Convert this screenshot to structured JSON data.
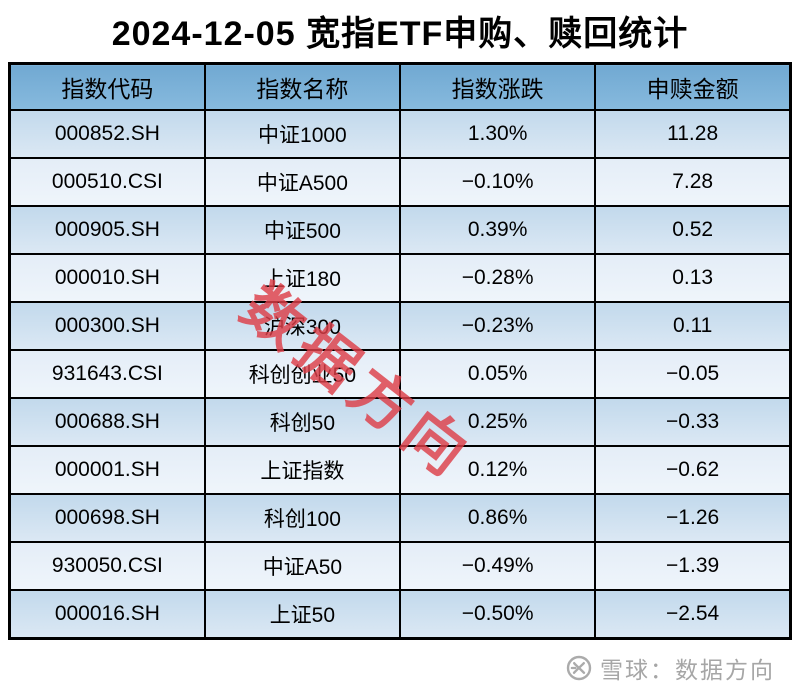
{
  "page": {
    "title": "2024-12-05 宽指ETF申购、赎回统计"
  },
  "table": {
    "columns": [
      {
        "key": "code",
        "label": "指数代码"
      },
      {
        "key": "name",
        "label": "指数名称"
      },
      {
        "key": "change",
        "label": "指数涨跌"
      },
      {
        "key": "amount",
        "label": "申赎金额"
      }
    ],
    "rows": [
      {
        "code": "000852.SH",
        "name": "中证1000",
        "change": "1.30%",
        "amount": "11.28"
      },
      {
        "code": "000510.CSI",
        "name": "中证A500",
        "change": "−0.10%",
        "amount": "7.28"
      },
      {
        "code": "000905.SH",
        "name": "中证500",
        "change": "0.39%",
        "amount": "0.52"
      },
      {
        "code": "000010.SH",
        "name": "上证180",
        "change": "−0.28%",
        "amount": "0.13"
      },
      {
        "code": "000300.SH",
        "name": "沪深300",
        "change": "−0.23%",
        "amount": "0.11"
      },
      {
        "code": "931643.CSI",
        "name": "科创创业50",
        "change": "0.05%",
        "amount": "−0.05"
      },
      {
        "code": "000688.SH",
        "name": "科创50",
        "change": "0.25%",
        "amount": "−0.33"
      },
      {
        "code": "000001.SH",
        "name": "上证指数",
        "change": "0.12%",
        "amount": "−0.62"
      },
      {
        "code": "000698.SH",
        "name": "科创100",
        "change": "0.86%",
        "amount": "−1.26"
      },
      {
        "code": "930050.CSI",
        "name": "中证A50",
        "change": "−0.49%",
        "amount": "−1.39"
      },
      {
        "code": "000016.SH",
        "name": "上证50",
        "change": "−0.50%",
        "amount": "−2.54"
      }
    ]
  },
  "watermark": {
    "text": "数据方向"
  },
  "footer": {
    "source": "雪球：数据方向",
    "icon": "xueqiu-snowball-icon"
  },
  "colors": {
    "header_bg_top": "#71a9d2",
    "header_bg_bottom": "#87bade",
    "row_odd_top": "#c2d9ec",
    "row_odd_bottom": "#dbe8f4",
    "row_even_top": "#e4edf7",
    "row_even_bottom": "#eff5fb",
    "border": "#000000",
    "watermark_red": "#dd3e48",
    "footer_gray": "#a6a6a6"
  },
  "chart_data": {
    "type": "table",
    "title": "2024-12-05 宽指ETF申购、赎回统计",
    "columns": [
      "指数代码",
      "指数名称",
      "指数涨跌",
      "申赎金额"
    ],
    "rows": [
      [
        "000852.SH",
        "中证1000",
        "1.30%",
        11.28
      ],
      [
        "000510.CSI",
        "中证A500",
        "-0.10%",
        7.28
      ],
      [
        "000905.SH",
        "中证500",
        "0.39%",
        0.52
      ],
      [
        "000010.SH",
        "上证180",
        "-0.28%",
        0.13
      ],
      [
        "000300.SH",
        "沪深300",
        "-0.23%",
        0.11
      ],
      [
        "931643.CSI",
        "科创创业50",
        "0.05%",
        -0.05
      ],
      [
        "000688.SH",
        "科创50",
        "0.25%",
        -0.33
      ],
      [
        "000001.SH",
        "上证指数",
        "0.12%",
        -0.62
      ],
      [
        "000698.SH",
        "科创100",
        "0.86%",
        -1.26
      ],
      [
        "930050.CSI",
        "中证A50",
        "-0.49%",
        -1.39
      ],
      [
        "000016.SH",
        "上证50",
        "-0.50%",
        -2.54
      ]
    ],
    "change_pct": [
      1.3,
      -0.1,
      0.39,
      -0.28,
      -0.23,
      0.05,
      0.25,
      0.12,
      0.86,
      -0.49,
      -0.5
    ],
    "net_amount": [
      11.28,
      7.28,
      0.52,
      0.13,
      0.11,
      -0.05,
      -0.33,
      -0.62,
      -1.26,
      -1.39,
      -2.54
    ]
  }
}
